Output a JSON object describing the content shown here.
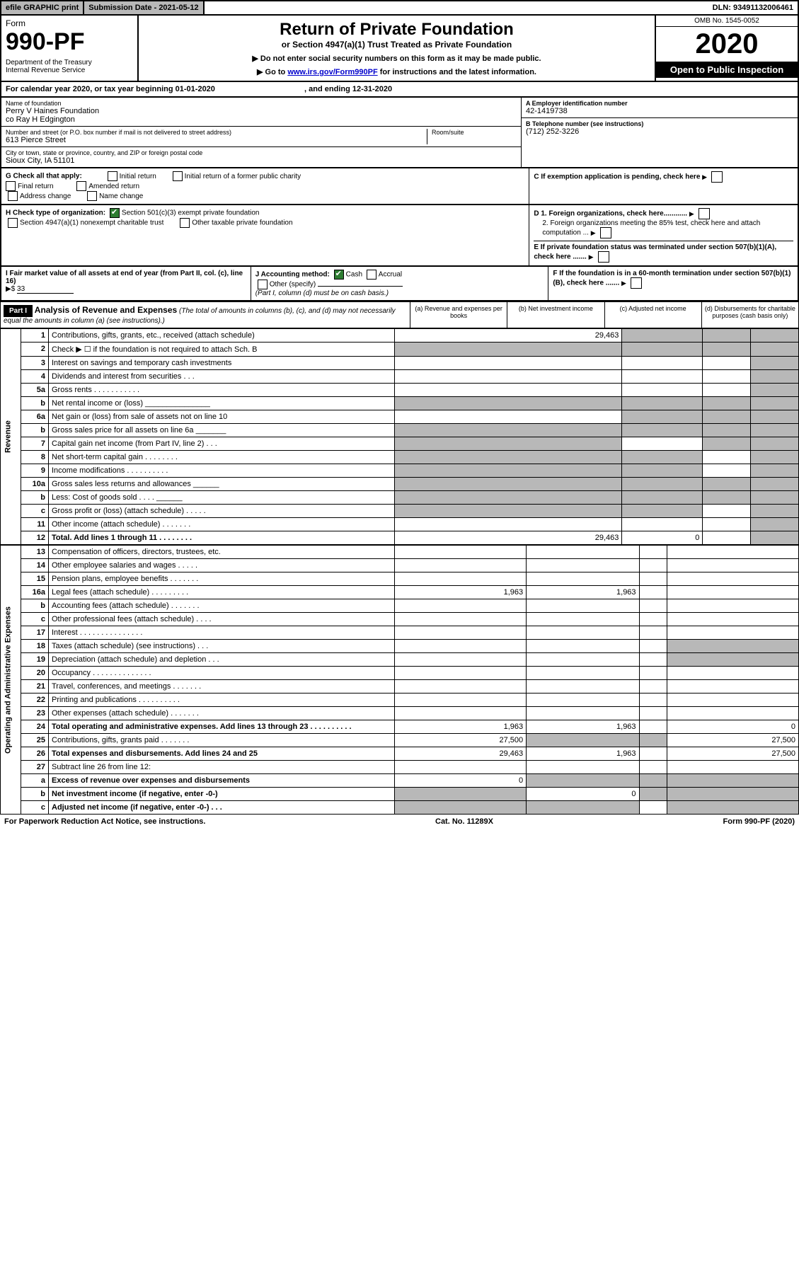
{
  "topbar": {
    "efile": "efile GRAPHIC print",
    "subdate_label": "Submission Date - 2021-05-12",
    "dln": "DLN: 93491132006461"
  },
  "header": {
    "form_word": "Form",
    "form_no": "990-PF",
    "dept": "Department of the Treasury\nInternal Revenue Service",
    "title": "Return of Private Foundation",
    "subtitle": "or Section 4947(a)(1) Trust Treated as Private Foundation",
    "note1": "▶ Do not enter social security numbers on this form as it may be made public.",
    "note2_pre": "▶ Go to ",
    "note2_link": "www.irs.gov/Form990PF",
    "note2_post": " for instructions and the latest information.",
    "omb": "OMB No. 1545-0052",
    "year": "2020",
    "open": "Open to Public Inspection"
  },
  "calyear": {
    "text_a": "For calendar year 2020, or tax year beginning 01-01-2020",
    "text_b": ", and ending 12-31-2020"
  },
  "info": {
    "name_label": "Name of foundation",
    "name1": "Perry V Haines Foundation",
    "name2": "co Ray H Edgington",
    "addr_label": "Number and street (or P.O. box number if mail is not delivered to street address)",
    "addr": "613 Pierce Street",
    "room_label": "Room/suite",
    "city_label": "City or town, state or province, country, and ZIP or foreign postal code",
    "city": "Sioux City, IA  51101",
    "a_label": "A Employer identification number",
    "a_val": "42-1419738",
    "b_label": "B Telephone number (see instructions)",
    "b_val": "(712) 252-3226",
    "c_label": "C If exemption application is pending, check here",
    "d1": "D 1. Foreign organizations, check here............",
    "d2": "2. Foreign organizations meeting the 85% test, check here and attach computation ...",
    "e": "E  If private foundation status was terminated under section 507(b)(1)(A), check here .......",
    "f": "F  If the foundation is in a 60-month termination under section 507(b)(1)(B), check here ......."
  },
  "g": {
    "label": "G Check all that apply:",
    "opts": [
      "Initial return",
      "Initial return of a former public charity",
      "Final return",
      "Amended return",
      "Address change",
      "Name change"
    ]
  },
  "h": {
    "label": "H Check type of organization:",
    "o1": "Section 501(c)(3) exempt private foundation",
    "o2": "Section 4947(a)(1) nonexempt charitable trust",
    "o3": "Other taxable private foundation"
  },
  "i": {
    "label": "I Fair market value of all assets at end of year (from Part II, col. (c), line 16)",
    "prefix": "▶$",
    "val": "33"
  },
  "j": {
    "label": "J Accounting method:",
    "o1": "Cash",
    "o2": "Accrual",
    "o3": "Other (specify)",
    "note": "(Part I, column (d) must be on cash basis.)"
  },
  "part1": {
    "hdr": "Part I",
    "title": "Analysis of Revenue and Expenses",
    "title_note": "(The total of amounts in columns (b), (c), and (d) may not necessarily equal the amounts in column (a) (see instructions).)",
    "cols": {
      "a": "(a)   Revenue and expenses per books",
      "b": "(b)  Net investment income",
      "c": "(c)  Adjusted net income",
      "d": "(d)  Disbursements for charitable purposes (cash basis only)"
    }
  },
  "rev_label": "Revenue",
  "exp_label": "Operating and Administrative Expenses",
  "rows": [
    {
      "n": "1",
      "d": "Contributions, gifts, grants, etc., received (attach schedule)",
      "a": "29,463",
      "sb": true,
      "sc": true,
      "sd": true
    },
    {
      "n": "2",
      "d": "Check ▶ ☐ if the foundation is not required to attach Sch. B",
      "sa": true,
      "sb": true,
      "sc": true,
      "sd": true
    },
    {
      "n": "3",
      "d": "Interest on savings and temporary cash investments",
      "sd": true
    },
    {
      "n": "4",
      "d": "Dividends and interest from securities   .   .   .",
      "sd": true
    },
    {
      "n": "5a",
      "d": "Gross rents      .   .   .   .   .   .   .   .   .   .   .",
      "sd": true
    },
    {
      "n": "b",
      "d": "Net rental income or (loss)  _______________",
      "sa": true,
      "sb": true,
      "sc": true,
      "sd": true
    },
    {
      "n": "6a",
      "d": "Net gain or (loss) from sale of assets not on line 10",
      "sb": true,
      "sc": true,
      "sd": true
    },
    {
      "n": "b",
      "d": "Gross sales price for all assets on line 6a  _______",
      "sa": true,
      "sb": true,
      "sc": true,
      "sd": true
    },
    {
      "n": "7",
      "d": "Capital gain net income (from Part IV, line 2)    .   .   .",
      "sa": true,
      "sc": true,
      "sd": true
    },
    {
      "n": "8",
      "d": "Net short-term capital gain   .   .   .   .   .   .   .   .",
      "sa": true,
      "sb": true,
      "sd": true
    },
    {
      "n": "9",
      "d": "Income modifications  .   .   .   .   .   .   .   .   .   .",
      "sa": true,
      "sb": true,
      "sd": true
    },
    {
      "n": "10a",
      "d": "Gross sales less returns and allowances  ______",
      "sa": true,
      "sb": true,
      "sc": true,
      "sd": true
    },
    {
      "n": "b",
      "d": "Less: Cost of goods sold      .   .   .   .  ______",
      "sa": true,
      "sb": true,
      "sc": true,
      "sd": true
    },
    {
      "n": "c",
      "d": "Gross profit or (loss) (attach schedule)    .   .   .   .   .",
      "sa": true,
      "sb": true,
      "sd": true
    },
    {
      "n": "11",
      "d": "Other income (attach schedule)    .   .   .   .   .   .   .",
      "sd": true
    },
    {
      "n": "12",
      "d": "Total. Add lines 1 through 11    .   .   .   .   .   .   .   .",
      "bold": true,
      "a": "29,463",
      "b": "0",
      "sd": true
    }
  ],
  "erows": [
    {
      "n": "13",
      "d": "Compensation of officers, directors, trustees, etc."
    },
    {
      "n": "14",
      "d": "Other employee salaries and wages    .   .   .   .   ."
    },
    {
      "n": "15",
      "d": "Pension plans, employee benefits   .   .   .   .   .   .   ."
    },
    {
      "n": "16a",
      "d": "Legal fees (attach schedule) .   .   .   .   .   .   .   .   .",
      "a": "1,963",
      "b": "1,963"
    },
    {
      "n": "b",
      "d": "Accounting fees (attach schedule)  .   .   .   .   .   .   ."
    },
    {
      "n": "c",
      "d": "Other professional fees (attach schedule)    .   .   .   ."
    },
    {
      "n": "17",
      "d": "Interest   .   .   .   .   .   .   .   .   .   .   .   .   .   .   ."
    },
    {
      "n": "18",
      "d": "Taxes (attach schedule) (see instructions)     .   .   .",
      "sd": true
    },
    {
      "n": "19",
      "d": "Depreciation (attach schedule) and depletion    .   .   .",
      "sd": true
    },
    {
      "n": "20",
      "d": "Occupancy  .   .   .   .   .   .   .   .   .   .   .   .   .   ."
    },
    {
      "n": "21",
      "d": "Travel, conferences, and meetings  .   .   .   .   .   .   ."
    },
    {
      "n": "22",
      "d": "Printing and publications  .   .   .   .   .   .   .   .   .   ."
    },
    {
      "n": "23",
      "d": "Other expenses (attach schedule)   .   .   .   .   .   .   ."
    },
    {
      "n": "24",
      "d": "Total operating and administrative expenses. Add lines 13 through 23   .   .   .   .   .   .   .   .   .   .",
      "bold": true,
      "a": "1,963",
      "b": "1,963",
      "d4": "0"
    },
    {
      "n": "25",
      "d": "Contributions, gifts, grants paid      .   .   .   .   .   .   .",
      "a": "27,500",
      "sb": true,
      "sc": true,
      "d4": "27,500"
    },
    {
      "n": "26",
      "d": "Total expenses and disbursements. Add lines 24 and 25",
      "bold": true,
      "a": "29,463",
      "b": "1,963",
      "d4": "27,500"
    },
    {
      "n": "27",
      "d": "Subtract line 26 from line 12:",
      "sa2": true
    },
    {
      "n": "a",
      "d": "Excess of revenue over expenses and disbursements",
      "bold": true,
      "a": "0",
      "sb": true,
      "sc": true,
      "sd": true
    },
    {
      "n": "b",
      "d": "Net investment income (if negative, enter -0-)",
      "bold": true,
      "sa": true,
      "b": "0",
      "sc": true,
      "sd": true
    },
    {
      "n": "c",
      "d": "Adjusted net income (if negative, enter -0-)   .   .   .",
      "bold": true,
      "sa": true,
      "sb": true,
      "sd": true
    }
  ],
  "footer": {
    "left": "For Paperwork Reduction Act Notice, see instructions.",
    "mid": "Cat. No. 11289X",
    "right": "Form 990-PF (2020)"
  }
}
